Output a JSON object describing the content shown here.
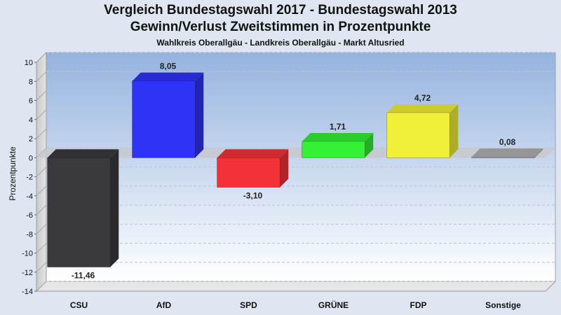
{
  "chart_data": {
    "type": "bar",
    "title": "Vergleich Bundestagswahl 2017 - Bundestagswahl 2013",
    "subtitle": "Gewinn/Verlust Zweitstimmen in Prozentpunkte",
    "caption": "Wahlkreis Oberallgäu - Landkreis Oberallgäu - Markt Altusried",
    "ylabel": "Prozentpunkte",
    "xlabel": "",
    "ylim": [
      -14,
      10
    ],
    "yticks": [
      10,
      8,
      6,
      4,
      2,
      0,
      -2,
      -4,
      -6,
      -8,
      -10,
      -12,
      -14
    ],
    "grid": true,
    "categories": [
      "CSU",
      "AfD",
      "SPD",
      "GRÜNE",
      "FDP",
      "Sonstige"
    ],
    "values": [
      -11.46,
      8.05,
      -3.1,
      1.71,
      4.72,
      0.08
    ],
    "value_labels": [
      "-11,46",
      "8,05",
      "-3,10",
      "1,71",
      "4,72",
      "0,08"
    ],
    "colors": [
      "#3a3a3e",
      "#2f33f6",
      "#f23238",
      "#35f035",
      "#f0f03a",
      "#b0b0b0"
    ]
  }
}
